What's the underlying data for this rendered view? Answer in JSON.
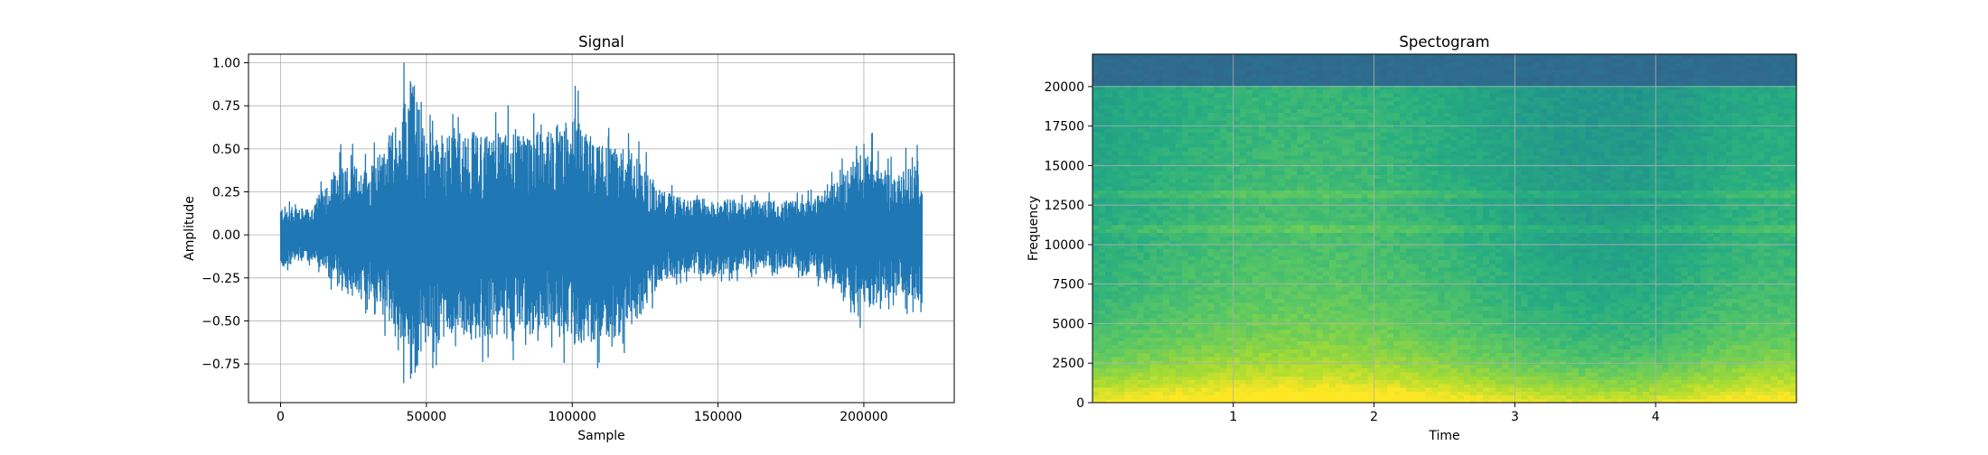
{
  "chart_data": [
    {
      "type": "line",
      "title": "Signal",
      "xlabel": "Sample",
      "ylabel": "Amplitude",
      "xlim": [
        -11000,
        231000
      ],
      "ylim": [
        -0.975,
        1.05
      ],
      "grid": true,
      "line_color": "#1f77b4",
      "x_ticks": [
        0,
        50000,
        100000,
        150000,
        200000
      ],
      "x_tick_labels": [
        "0",
        "50000",
        "100000",
        "150000",
        "200000"
      ],
      "y_ticks": [
        -0.75,
        -0.5,
        -0.25,
        0.0,
        0.25,
        0.5,
        0.75,
        1.0
      ],
      "y_tick_labels": [
        "−0.75",
        "−0.50",
        "−0.25",
        "0.00",
        "0.25",
        "0.50",
        "0.75",
        "1.00"
      ],
      "series": [
        {
          "x": [
            0,
            10000,
            20000,
            30000,
            40000,
            45000,
            50000,
            60000,
            70000,
            80000,
            90000,
            100000,
            110000,
            120000,
            130000,
            140000,
            150000,
            160000,
            170000,
            180000,
            190000,
            200000,
            210000,
            220000
          ],
          "upper": [
            0.17,
            0.15,
            0.42,
            0.4,
            0.65,
            0.96,
            0.55,
            0.63,
            0.58,
            0.62,
            0.6,
            0.7,
            0.52,
            0.5,
            0.27,
            0.2,
            0.22,
            0.2,
            0.2,
            0.2,
            0.3,
            0.5,
            0.35,
            0.45
          ],
          "lower": [
            -0.2,
            -0.15,
            -0.32,
            -0.4,
            -0.55,
            -0.88,
            -0.62,
            -0.65,
            -0.6,
            -0.62,
            -0.55,
            -0.65,
            -0.62,
            -0.58,
            -0.28,
            -0.22,
            -0.25,
            -0.2,
            -0.2,
            -0.22,
            -0.33,
            -0.45,
            -0.35,
            -0.4
          ]
        }
      ]
    },
    {
      "type": "heatmap",
      "title": "Spectogram",
      "xlabel": "Time",
      "ylabel": "Frequency",
      "xlim": [
        0,
        5
      ],
      "ylim": [
        0,
        22050
      ],
      "grid": true,
      "colormap": "viridis",
      "x_ticks": [
        1,
        2,
        3,
        4
      ],
      "x_tick_labels": [
        "1",
        "2",
        "3",
        "4"
      ],
      "y_ticks": [
        0,
        2500,
        5000,
        7500,
        10000,
        12500,
        15000,
        17500,
        20000
      ],
      "y_tick_labels": [
        "0",
        "2500",
        "5000",
        "7500",
        "10000",
        "12500",
        "15000",
        "17500",
        "20000"
      ],
      "cutoff_frequency": 20000
    }
  ]
}
